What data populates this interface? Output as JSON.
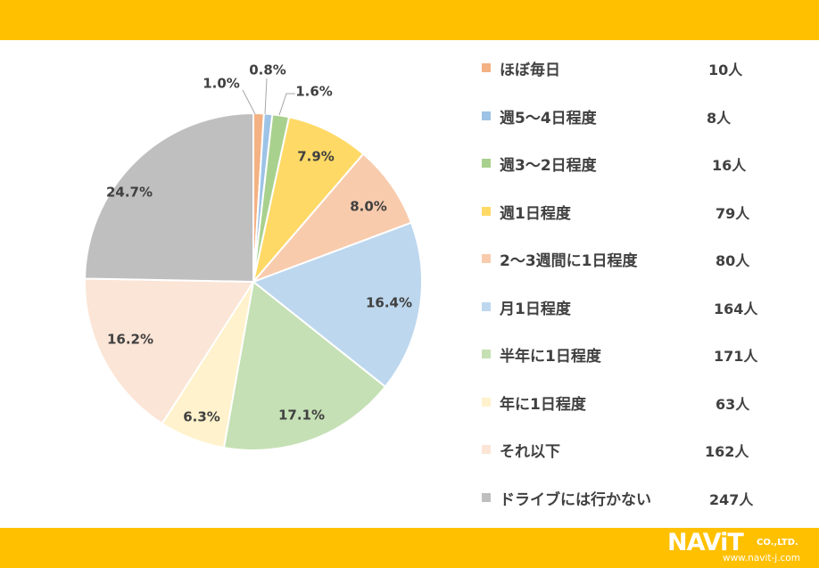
{
  "chart_data": {
    "type": "pie",
    "title": "",
    "slices": [
      {
        "label": "ほぼ毎日",
        "count_label": "10人",
        "value": 1.0,
        "percent_label": "1.0%",
        "color": "#f4b183"
      },
      {
        "label": "週5～4日程度",
        "count_label": "8人",
        "value": 0.8,
        "percent_label": "0.8%",
        "color": "#9dc3e6"
      },
      {
        "label": "週3～2日程度",
        "count_label": "16人",
        "value": 1.6,
        "percent_label": "1.6%",
        "color": "#a9d18e"
      },
      {
        "label": "週1日程度",
        "count_label": "79人",
        "value": 7.9,
        "percent_label": "7.9%",
        "color": "#ffd966"
      },
      {
        "label": "2～3週間に1日程度",
        "count_label": "80人",
        "value": 8.0,
        "percent_label": "8.0%",
        "color": "#f8cbad"
      },
      {
        "label": "月1日程度",
        "count_label": "164人",
        "value": 16.4,
        "percent_label": "16.4%",
        "color": "#bdd7ee"
      },
      {
        "label": "半年に1日程度",
        "count_label": "171人",
        "value": 17.1,
        "percent_label": "17.1%",
        "color": "#c5e0b4"
      },
      {
        "label": "年に1日程度",
        "count_label": "63人",
        "value": 6.3,
        "percent_label": "6.3%",
        "color": "#fff2cc"
      },
      {
        "label": "それ以下",
        "count_label": "162人",
        "value": 16.2,
        "percent_label": "16.2%",
        "color": "#fbe5d6"
      },
      {
        "label": "ドライブには行かない",
        "count_label": "247人",
        "value": 24.7,
        "percent_label": "24.7%",
        "color": "#bfbfbf"
      }
    ]
  },
  "brand": {
    "logo_text": "NAViT",
    "company_suffix": "CO.,LTD.",
    "url": "www.navit-j.com"
  },
  "colors": {
    "bar": "#ffc000",
    "text": "#404040"
  }
}
